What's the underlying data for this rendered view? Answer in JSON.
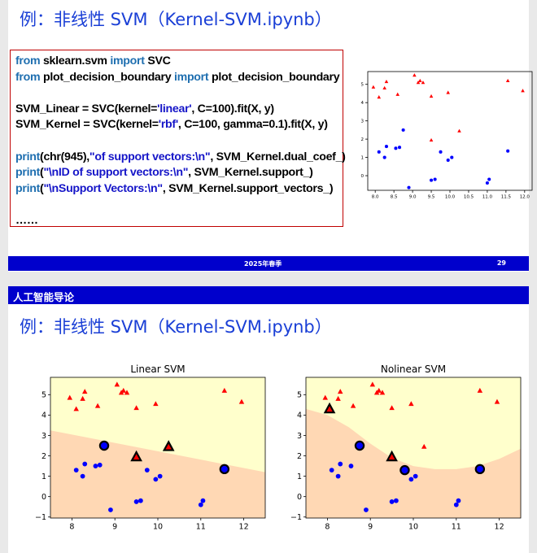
{
  "slide1": {
    "title": "例：非线性 SVM（Kernel-SVM.ipynb）",
    "footer": {
      "semester": "2025年春季",
      "page": "29"
    },
    "code": [
      [
        {
          "t": "from",
          "c": "kw"
        },
        {
          "t": " sklearn.svm ",
          "c": ""
        },
        {
          "t": "import",
          "c": "kw"
        },
        {
          "t": " SVC",
          "c": ""
        }
      ],
      [
        {
          "t": "from",
          "c": "kw"
        },
        {
          "t": " plot_decision_boundary ",
          "c": ""
        },
        {
          "t": "import",
          "c": "kw"
        },
        {
          "t": " plot_decision_boundary",
          "c": ""
        }
      ],
      [],
      [
        {
          "t": "SVM_Linear = SVC(kernel=",
          "c": ""
        },
        {
          "t": "'linear'",
          "c": "str"
        },
        {
          "t": ", C=100).fit(X, y)",
          "c": ""
        }
      ],
      [
        {
          "t": "SVM_Kernel = SVC(kernel=",
          "c": ""
        },
        {
          "t": "'rbf'",
          "c": "str"
        },
        {
          "t": ", C=100, gamma=0.1).fit(X, y)",
          "c": ""
        }
      ],
      [],
      [
        {
          "t": "print",
          "c": "kw"
        },
        {
          "t": "(chr(945),",
          "c": ""
        },
        {
          "t": "\"of support vectors:\\n\"",
          "c": "str"
        },
        {
          "t": ", SVM_Kernel.dual_coef_)",
          "c": ""
        }
      ],
      [
        {
          "t": "print",
          "c": "kw"
        },
        {
          "t": "(",
          "c": ""
        },
        {
          "t": "\"\\nID of support vectors:\\n\"",
          "c": "str"
        },
        {
          "t": ", SVM_Kernel.support_)",
          "c": ""
        }
      ],
      [
        {
          "t": "print",
          "c": "kw"
        },
        {
          "t": "(",
          "c": ""
        },
        {
          "t": "\"\\nSupport Vectors:\\n\"",
          "c": "str"
        },
        {
          "t": ", SVM_Kernel.support_vectors_)",
          "c": ""
        }
      ],
      [],
      [
        {
          "t": "……",
          "c": ""
        }
      ]
    ]
  },
  "slide2": {
    "header": "人工智能导论",
    "title": "例：非线性 SVM（Kernel-SVM.ipynb）"
  },
  "colors": {
    "class_pos": "#ff0000",
    "class_neg": "#0000ff",
    "region_pos": "#ffffcc",
    "region_neg": "#ffd8b4",
    "brand": "#0000cc",
    "title": "#1a3fd6"
  },
  "chart_data": [
    {
      "type": "scatter",
      "title": "",
      "xlim": [
        7.8,
        12.2
      ],
      "ylim": [
        -0.8,
        5.7
      ],
      "xticks": [
        "8.0",
        "8.5",
        "9.0",
        "9.5",
        "10.0",
        "10.5",
        "11.0",
        "11.5",
        "12.0"
      ],
      "yticks": [
        "0",
        "1",
        "2",
        "3",
        "4",
        "5"
      ],
      "series": [
        {
          "marker": "triangle",
          "color": "red",
          "points": [
            [
              7.95,
              4.85
            ],
            [
              8.1,
              4.3
            ],
            [
              8.25,
              4.8
            ],
            [
              8.3,
              5.15
            ],
            [
              8.6,
              4.45
            ],
            [
              9.05,
              5.5
            ],
            [
              9.15,
              5.1
            ],
            [
              9.2,
              5.2
            ],
            [
              9.28,
              5.1
            ],
            [
              9.5,
              4.35
            ],
            [
              9.95,
              4.55
            ],
            [
              11.55,
              5.2
            ],
            [
              11.95,
              4.65
            ],
            [
              9.5,
              1.95
            ],
            [
              10.25,
              2.45
            ]
          ]
        },
        {
          "marker": "circle",
          "color": "blue",
          "points": [
            [
              8.1,
              1.3
            ],
            [
              8.25,
              1.0
            ],
            [
              8.3,
              1.6
            ],
            [
              8.55,
              1.5
            ],
            [
              8.65,
              1.55
            ],
            [
              8.75,
              2.5
            ],
            [
              8.9,
              -0.65
            ],
            [
              9.5,
              -0.25
            ],
            [
              9.6,
              -0.2
            ],
            [
              9.75,
              1.3
            ],
            [
              9.95,
              0.85
            ],
            [
              10.05,
              1.0
            ],
            [
              11.0,
              -0.4
            ],
            [
              11.05,
              -0.2
            ],
            [
              11.55,
              1.35
            ]
          ]
        }
      ]
    },
    {
      "type": "scatter",
      "title": "Linear SVM",
      "xlim": [
        7.5,
        12.5
      ],
      "ylim": [
        -1.05,
        5.85
      ],
      "xticks": [
        "8",
        "9",
        "10",
        "11",
        "12"
      ],
      "yticks": [
        "−1",
        "0",
        "1",
        "2",
        "3",
        "4",
        "5"
      ],
      "boundary": [
        [
          7.5,
          3.25
        ],
        [
          12.5,
          1.2
        ]
      ],
      "support_vectors": [
        [
          8.75,
          2.5
        ],
        [
          9.5,
          1.95
        ],
        [
          10.25,
          2.45
        ],
        [
          11.55,
          1.35
        ]
      ],
      "series": [
        {
          "marker": "triangle",
          "color": "red",
          "points": [
            [
              7.95,
              4.85
            ],
            [
              8.1,
              4.3
            ],
            [
              8.25,
              4.8
            ],
            [
              8.3,
              5.15
            ],
            [
              8.6,
              4.45
            ],
            [
              9.05,
              5.5
            ],
            [
              9.15,
              5.1
            ],
            [
              9.2,
              5.2
            ],
            [
              9.28,
              5.1
            ],
            [
              9.5,
              4.35
            ],
            [
              9.95,
              4.55
            ],
            [
              11.55,
              5.2
            ],
            [
              11.95,
              4.65
            ],
            [
              9.5,
              1.95
            ],
            [
              10.25,
              2.45
            ]
          ]
        },
        {
          "marker": "circle",
          "color": "blue",
          "points": [
            [
              8.1,
              1.3
            ],
            [
              8.25,
              1.0
            ],
            [
              8.3,
              1.6
            ],
            [
              8.55,
              1.5
            ],
            [
              8.65,
              1.55
            ],
            [
              8.75,
              2.5
            ],
            [
              8.9,
              -0.65
            ],
            [
              9.5,
              -0.25
            ],
            [
              9.6,
              -0.2
            ],
            [
              9.75,
              1.3
            ],
            [
              9.95,
              0.85
            ],
            [
              10.05,
              1.0
            ],
            [
              11.0,
              -0.4
            ],
            [
              11.05,
              -0.2
            ],
            [
              11.55,
              1.35
            ]
          ]
        }
      ]
    },
    {
      "type": "scatter",
      "title": "Nolinear SVM",
      "xlim": [
        7.5,
        12.5
      ],
      "ylim": [
        -1.05,
        5.85
      ],
      "xticks": [
        "8",
        "9",
        "10",
        "11",
        "12"
      ],
      "yticks": [
        "−1",
        "0",
        "1",
        "2",
        "3",
        "4",
        "5"
      ],
      "boundary": [
        [
          7.5,
          4.3
        ],
        [
          8.0,
          4.0
        ],
        [
          8.5,
          3.4
        ],
        [
          9.0,
          2.6
        ],
        [
          9.5,
          1.9
        ],
        [
          10.0,
          1.5
        ],
        [
          10.5,
          1.35
        ],
        [
          11.0,
          1.35
        ],
        [
          11.5,
          1.5
        ],
        [
          12.0,
          1.85
        ],
        [
          12.5,
          2.35
        ]
      ],
      "support_vectors": [
        [
          8.05,
          4.3
        ],
        [
          8.75,
          2.5
        ],
        [
          9.5,
          1.95
        ],
        [
          9.8,
          1.3
        ],
        [
          11.55,
          1.35
        ]
      ],
      "series": [
        {
          "marker": "triangle",
          "color": "red",
          "points": [
            [
              7.95,
              4.85
            ],
            [
              8.05,
              4.3
            ],
            [
              8.25,
              4.8
            ],
            [
              8.3,
              5.15
            ],
            [
              8.6,
              4.45
            ],
            [
              9.05,
              5.5
            ],
            [
              9.15,
              5.1
            ],
            [
              9.2,
              5.2
            ],
            [
              9.28,
              5.1
            ],
            [
              9.5,
              4.35
            ],
            [
              9.95,
              4.55
            ],
            [
              11.55,
              5.2
            ],
            [
              11.95,
              4.65
            ],
            [
              9.5,
              1.95
            ],
            [
              10.25,
              2.45
            ]
          ]
        },
        {
          "marker": "circle",
          "color": "blue",
          "points": [
            [
              8.1,
              1.3
            ],
            [
              8.25,
              1.0
            ],
            [
              8.3,
              1.6
            ],
            [
              8.55,
              1.5
            ],
            [
              8.75,
              2.5
            ],
            [
              8.9,
              -0.65
            ],
            [
              9.5,
              -0.25
            ],
            [
              9.6,
              -0.2
            ],
            [
              9.8,
              1.3
            ],
            [
              9.95,
              0.85
            ],
            [
              10.05,
              1.0
            ],
            [
              11.0,
              -0.4
            ],
            [
              11.05,
              -0.2
            ],
            [
              11.55,
              1.35
            ]
          ]
        }
      ]
    }
  ]
}
